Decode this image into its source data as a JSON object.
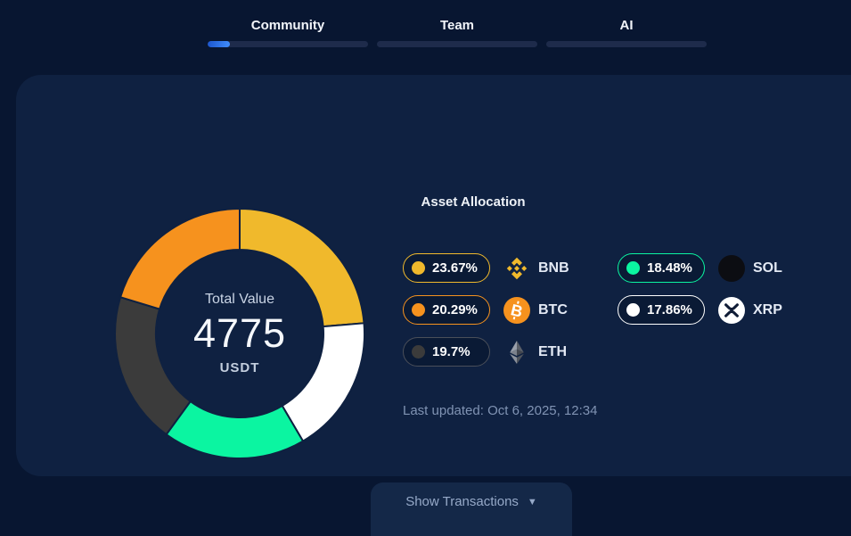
{
  "tabs": [
    {
      "label": "Community",
      "progress_percent": 14,
      "active": true
    },
    {
      "label": "Team",
      "progress_percent": 0,
      "active": false
    },
    {
      "label": "AI",
      "progress_percent": 0,
      "active": false
    }
  ],
  "theme": {
    "progress_fill": "#2F7BF2",
    "page_bg": "#081631",
    "card_bg": "#0F2141"
  },
  "chart_data": {
    "type": "pie",
    "subtype": "donut",
    "title": "Asset Allocation",
    "center": {
      "label": "Total Value",
      "value": "4775",
      "unit": "USDT"
    },
    "slices": [
      {
        "name": "BNB",
        "value": 23.67,
        "percent_label": "23.67%",
        "color": "#F0B92C",
        "icon": "bnb-coin-icon"
      },
      {
        "name": "BTC",
        "value": 20.29,
        "percent_label": "20.29%",
        "color": "#F6921E",
        "icon": "btc-coin-icon"
      },
      {
        "name": "ETH",
        "value": 19.7,
        "percent_label": "19.7%",
        "color": "#3B3B3B",
        "pill_border": "#4A4F59",
        "icon": "eth-coin-icon"
      },
      {
        "name": "SOL",
        "value": 18.48,
        "percent_label": "18.48%",
        "color": "#0BF5A1",
        "icon": "sol-coin-icon"
      },
      {
        "name": "XRP",
        "value": 17.86,
        "percent_label": "17.86%",
        "color": "#FFFFFF",
        "icon": "xrp-coin-icon"
      }
    ],
    "draw_order_clockwise_from_top": [
      "BNB",
      "XRP",
      "SOL",
      "ETH",
      "BTC"
    ],
    "legend_columns": [
      [
        "BNB",
        "BTC",
        "ETH"
      ],
      [
        "SOL",
        "XRP"
      ]
    ],
    "legend_position": "right"
  },
  "card": {
    "last_updated": "Last updated: Oct 6, 2025, 12:34",
    "show_transactions_label": "Show Transactions"
  }
}
